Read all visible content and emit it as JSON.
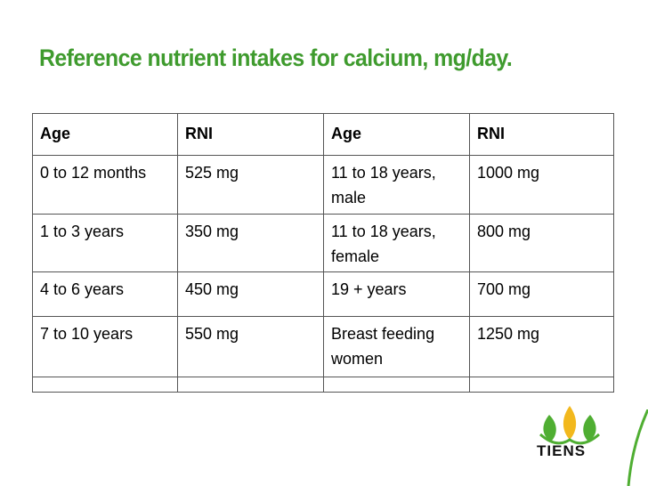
{
  "title": "Reference nutrient intakes for calcium, mg/day.",
  "table": {
    "header": [
      "Age",
      "RNI",
      "Age",
      "RNI"
    ],
    "rows": [
      [
        "0 to 12 months",
        "525 mg",
        "11 to 18 years, male",
        "1000 mg"
      ],
      [
        "1 to 3 years",
        "350 mg",
        "11 to 18 years, female",
        "800 mg"
      ],
      [
        "4 to 6 years",
        "450 mg",
        "19 + years",
        "700 mg"
      ],
      [
        "7 to 10 years",
        "550 mg",
        "Breast feeding women",
        "1250 mg"
      ]
    ]
  },
  "logo": {
    "text": "TIENS"
  }
}
